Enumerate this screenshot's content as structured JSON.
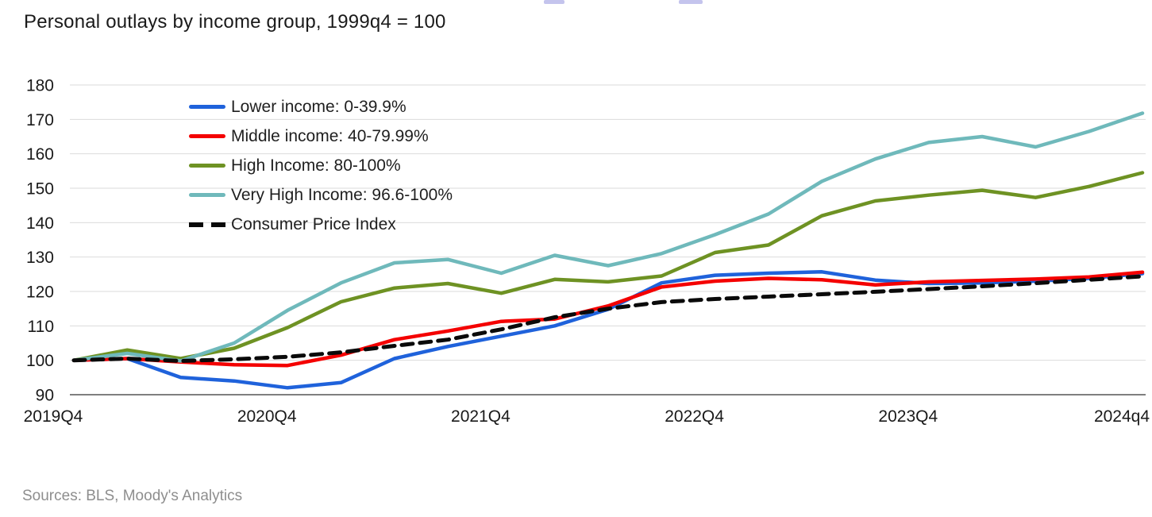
{
  "header": {
    "title": "Personal outlays by income group, 1999q4 = 100"
  },
  "footer": {
    "sources": "Sources: BLS, Moody's Analytics"
  },
  "chart_data": {
    "type": "line",
    "x_categories": [
      "2019Q4",
      "2020Q1",
      "2020Q2",
      "2020Q3",
      "2020Q4",
      "2021Q1",
      "2021Q2",
      "2021Q3",
      "2021Q4",
      "2022Q1",
      "2022Q2",
      "2022Q3",
      "2022Q4",
      "2023Q1",
      "2023Q2",
      "2023Q3",
      "2023Q4",
      "2024Q1",
      "2024Q2",
      "2024Q3",
      "2024Q4"
    ],
    "x_axis_shown_labels": [
      {
        "label": "2019Q4",
        "index": 0
      },
      {
        "label": "2020Q4",
        "index": 4
      },
      {
        "label": "2021Q4",
        "index": 8
      },
      {
        "label": "2022Q4",
        "index": 12
      },
      {
        "label": "2023Q4",
        "index": 16
      },
      {
        "label": "2024q4",
        "index": 20
      }
    ],
    "ylim": [
      90,
      180
    ],
    "y_tick_step": 10,
    "y_tick_labels": [
      "90",
      "100",
      "110",
      "120",
      "130",
      "140",
      "150",
      "160",
      "170",
      "180"
    ],
    "grid": "horizontal",
    "legend_position": "top-left-inside",
    "series": [
      {
        "name": "lower-income",
        "label": "Lower income: 0-39.9%",
        "color": "#1f62db",
        "dash": false,
        "values": [
          100,
          100.5,
          95,
          94,
          92,
          93.5,
          100.5,
          104,
          107,
          110,
          114.8,
          122.5,
          124.7,
          125.3,
          125.7,
          123.3,
          122.3,
          122.5,
          123,
          123.8,
          125.2
        ]
      },
      {
        "name": "middle-income",
        "label": "Middle income: 40-79.99%",
        "color": "#f40000",
        "dash": false,
        "values": [
          100,
          100.5,
          99.5,
          98.7,
          98.5,
          101.5,
          106,
          108.5,
          111.3,
          112,
          115.8,
          121.3,
          123,
          123.8,
          123.4,
          121.9,
          122.8,
          123.2,
          123.6,
          124.2,
          125.6
        ]
      },
      {
        "name": "high-income",
        "label": "High Income: 80-100%",
        "color": "#6e9223",
        "dash": false,
        "values": [
          100,
          103,
          100.5,
          103.5,
          109.5,
          117,
          121,
          122.3,
          119.5,
          123.5,
          122.8,
          124.5,
          131.3,
          133.5,
          142,
          146.3,
          148,
          149.4,
          147.3,
          150.5,
          154.5
        ]
      },
      {
        "name": "very-high-income",
        "label": "Very High Income: 96.6-100%",
        "color": "#6fb9bb",
        "dash": false,
        "values": [
          100,
          102,
          99.8,
          105,
          114.5,
          122.5,
          128.3,
          129.3,
          125.3,
          130.5,
          127.5,
          131,
          136.5,
          142.5,
          152,
          158.5,
          163.3,
          165,
          162,
          166.5,
          171.8
        ]
      },
      {
        "name": "consumer-price-index",
        "label": "Consumer Price Index",
        "color": "#0a0a0a",
        "dash": true,
        "values": [
          100,
          100.5,
          99.8,
          100.3,
          101,
          102.3,
          104.2,
          106,
          109,
          112.5,
          115,
          116.9,
          117.8,
          118.5,
          119.2,
          119.9,
          120.7,
          121.5,
          122.4,
          123.4,
          124.4
        ]
      }
    ]
  }
}
